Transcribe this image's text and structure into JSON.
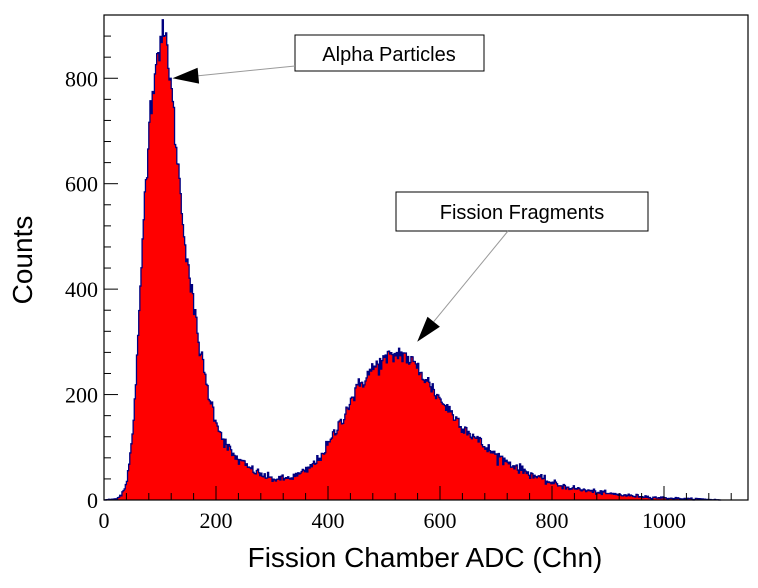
{
  "chart_data": {
    "type": "area",
    "xlabel": "Fission Chamber ADC (Chn)",
    "ylabel": "Counts",
    "xlim": [
      0,
      1150
    ],
    "ylim": [
      0,
      920
    ],
    "x_ticks": [
      0,
      200,
      400,
      600,
      800,
      1000
    ],
    "y_ticks": [
      0,
      200,
      400,
      600,
      800
    ],
    "grid": false,
    "colors": {
      "fill": "#ff0000",
      "outline": "#000080",
      "frame": "#000000"
    },
    "series": [
      {
        "x": [
          0,
          20,
          30,
          40,
          50,
          60,
          70,
          80,
          90,
          100,
          105,
          110,
          115,
          120,
          130,
          140,
          150,
          160,
          170,
          180,
          190,
          200,
          210,
          220,
          230,
          240,
          260,
          280,
          300,
          320,
          340,
          360,
          380,
          400,
          420,
          440,
          460,
          480,
          500,
          520,
          530,
          540,
          560,
          580,
          600,
          620,
          640,
          660,
          680,
          700,
          720,
          740,
          760,
          780,
          800,
          820,
          840,
          860,
          880,
          900,
          920,
          940,
          960,
          980,
          1000,
          1020,
          1040,
          1060,
          1080,
          1100
        ],
        "values": [
          0,
          2,
          10,
          35,
          120,
          300,
          540,
          720,
          820,
          870,
          880,
          870,
          830,
          770,
          650,
          530,
          440,
          360,
          290,
          230,
          185,
          150,
          120,
          100,
          85,
          75,
          60,
          48,
          40,
          40,
          45,
          55,
          75,
          105,
          145,
          190,
          225,
          250,
          265,
          275,
          280,
          270,
          250,
          220,
          190,
          165,
          140,
          120,
          100,
          85,
          72,
          60,
          50,
          40,
          32,
          26,
          22,
          18,
          15,
          12,
          10,
          8,
          7,
          5,
          4,
          3,
          2,
          2,
          1,
          0
        ]
      }
    ],
    "annotations": [
      {
        "text": "Alpha Particles",
        "points_to": {
          "x": 108,
          "y": 800
        }
      },
      {
        "text": "Fission Fragments",
        "points_to": {
          "x": 545,
          "y": 300
        }
      }
    ]
  }
}
